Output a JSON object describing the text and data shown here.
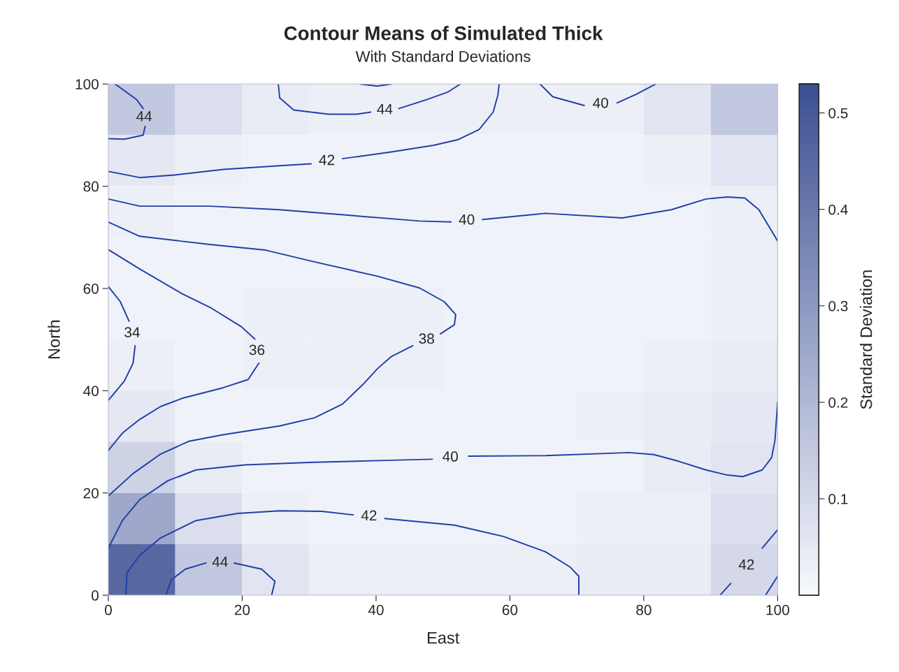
{
  "chart_data": [
    {
      "type": "heatmap",
      "clabel": "Standard Deviation",
      "clim": [
        0,
        0.53
      ],
      "cticks": [
        0.1,
        0.2,
        0.3,
        0.4,
        0.5
      ],
      "tick_labels": false,
      "categories": [
        null,
        null,
        null,
        null,
        null,
        null,
        null,
        null,
        null,
        null
      ],
      "y_categories": [
        null,
        null,
        null,
        null,
        null,
        null,
        null,
        null,
        null,
        null
      ],
      "cells": [
        [
          0.15,
          0.08,
          0.04,
          0.03,
          0.03,
          0.03,
          0.03,
          0.03,
          0.06,
          0.15
        ],
        [
          0.05,
          0.03,
          0.02,
          0.02,
          0.02,
          0.02,
          0.02,
          0.02,
          0.03,
          0.06
        ],
        [
          0.03,
          0.02,
          0.02,
          0.02,
          0.02,
          0.02,
          0.02,
          0.02,
          0.02,
          0.03
        ],
        [
          0.02,
          0.02,
          0.02,
          0.02,
          0.02,
          0.02,
          0.02,
          0.02,
          0.02,
          0.03
        ],
        [
          0.02,
          0.02,
          0.03,
          0.03,
          0.03,
          0.02,
          0.02,
          0.02,
          0.02,
          0.03
        ],
        [
          0.03,
          0.02,
          0.03,
          0.03,
          0.03,
          0.02,
          0.02,
          0.02,
          0.03,
          0.04
        ],
        [
          0.05,
          0.02,
          0.02,
          0.02,
          0.02,
          0.02,
          0.02,
          0.03,
          0.04,
          0.05
        ],
        [
          0.12,
          0.04,
          0.02,
          0.02,
          0.02,
          0.02,
          0.02,
          0.02,
          0.04,
          0.06
        ],
        [
          0.25,
          0.08,
          0.03,
          0.02,
          0.02,
          0.02,
          0.02,
          0.03,
          0.03,
          0.08
        ],
        [
          0.45,
          0.15,
          0.06,
          0.03,
          0.03,
          0.03,
          0.03,
          0.04,
          0.04,
          0.1
        ]
      ]
    },
    {
      "type": "line",
      "title": "Contour Means of Simulated Thick",
      "subtitle": "With Standard Deviations",
      "xlabel": "East",
      "ylabel": "North",
      "xlim": [
        0,
        100
      ],
      "xticks": [
        0,
        20,
        40,
        60,
        80,
        100
      ],
      "ylim": [
        0,
        100
      ],
      "yticks": [
        0,
        20,
        40,
        60,
        80,
        100
      ],
      "series": [
        {
          "name": "44",
          "color": "#1f3fa8",
          "x": [
            1.0,
            4.2,
            5.2,
            null,
            5.5,
            5.2,
            2.4,
            0
          ],
          "values": [
            100,
            97.0,
            95.2,
            null,
            91.7,
            90.0,
            89.2,
            89.3
          ]
        },
        {
          "name": "44",
          "color": "#1f3fa8",
          "x": [
            25.4,
            25.6,
            27.7,
            32.9,
            37.1,
            39.2,
            null,
            43.4,
            47.5,
            50.7,
            52.6
          ],
          "values": [
            100,
            97.3,
            94.9,
            94.1,
            94.1,
            94.5,
            null,
            95.2,
            96.9,
            98.4,
            100
          ]
        },
        {
          "color": "#1f3fa8",
          "x": [
            37.6,
            40.2,
            42.3
          ],
          "values": [
            100,
            99.6,
            100
          ]
        },
        {
          "name": "40",
          "color": "#1f3fa8",
          "x": [
            64.5,
            66.4,
            71.1,
            null,
            76.0,
            78.9,
            81.8
          ],
          "values": [
            100,
            97.5,
            95.8,
            null,
            96.3,
            98.0,
            100
          ]
        },
        {
          "name": "42",
          "color": "#1f3fa8",
          "x": [
            0,
            4.7,
            9.9,
            17.2,
            25.6,
            30.3,
            null,
            35.0,
            42.3,
            48.6,
            52.2,
            55.4,
            57.5,
            58.2,
            58.4
          ],
          "values": [
            82.9,
            81.7,
            82.2,
            83.3,
            84.0,
            84.4,
            null,
            85.4,
            86.7,
            88.0,
            89.1,
            91.1,
            94.5,
            97.8,
            100
          ]
        },
        {
          "name": "40",
          "color": "#1f3fa8",
          "x": [
            0,
            4.7,
            15.2,
            25.6,
            36.1,
            46.5,
            51.2,
            null,
            55.9,
            65.3,
            76.8,
            84.1,
            89.3,
            92.5,
            95.1,
            97.2,
            100
          ],
          "values": [
            77.5,
            76.1,
            76.1,
            75.4,
            74.3,
            73.2,
            73.0,
            null,
            73.5,
            74.7,
            73.8,
            75.4,
            77.5,
            77.9,
            77.7,
            75.4,
            69.3
          ]
        },
        {
          "name": "38",
          "color": "#1f3fa8",
          "x": [
            0,
            4.7,
            15.2,
            23.5,
            30.8,
            40.2,
            46.5,
            50.2,
            51.9,
            51.7,
            49.6,
            null,
            45.5,
            42.3,
            40.2,
            38.1,
            35.0,
            30.8,
            25.6,
            17.2,
            12.0,
            7.8,
            3.7,
            0
          ],
          "values": [
            73.0,
            70.2,
            68.6,
            67.5,
            65.2,
            62.4,
            60.1,
            57.4,
            54.9,
            52.9,
            51.1,
            null,
            48.8,
            46.7,
            44.3,
            41.3,
            37.4,
            34.7,
            33.1,
            31.4,
            30.1,
            27.6,
            23.8,
            19.4
          ]
        },
        {
          "name": "36",
          "color": "#1f3fa8",
          "x": [
            0,
            4.7,
            11.0,
            15.2,
            19.9,
            21.9,
            null,
            22.5,
            20.9,
            17.2,
            11.0,
            7.8,
            4.7,
            2.1,
            0
          ],
          "values": [
            67.6,
            63.8,
            59.0,
            56.3,
            52.5,
            50.1,
            null,
            45.4,
            42.2,
            40.6,
            38.5,
            36.9,
            34.4,
            31.7,
            28.3
          ]
        },
        {
          "name": "34",
          "color": "#1f3fa8",
          "x": [
            0,
            1.8,
            3.1,
            null,
            4.0,
            3.7,
            2.4,
            0
          ],
          "values": [
            60.4,
            57.4,
            53.6,
            null,
            48.8,
            45.4,
            41.9,
            38.1
          ]
        },
        {
          "name": "40",
          "color": "#1f3fa8",
          "x": [
            0,
            2.1,
            4.7,
            8.9,
            13.1,
            20.4,
            30.8,
            42.3,
            48.4,
            null,
            53.8,
            65.3,
            77.8,
            81.5,
            85.2,
            89.3,
            92.5,
            94.8,
            97.7,
            99.1,
            99.6,
            100
          ],
          "values": [
            9.2,
            14.6,
            18.7,
            22.4,
            24.5,
            25.5,
            26.0,
            26.4,
            26.6,
            null,
            27.2,
            27.3,
            27.9,
            27.5,
            26.2,
            24.5,
            23.5,
            23.2,
            24.5,
            26.9,
            30.3,
            37.8
          ]
        },
        {
          "name": "42",
          "color": "#1f3fa8",
          "x": [
            2.6,
            2.8,
            4.7,
            7.8,
            13.1,
            19.3,
            25.6,
            31.9,
            36.6,
            null,
            41.3,
            51.7,
            59.0,
            65.3,
            69.0,
            70.3,
            70.3
          ],
          "values": [
            0,
            4.4,
            7.8,
            11.2,
            14.6,
            16.0,
            16.5,
            16.4,
            15.7,
            null,
            15.0,
            13.7,
            11.5,
            8.5,
            5.5,
            3.7,
            0
          ]
        },
        {
          "name": "44",
          "color": "#1f3fa8",
          "x": [
            8.6,
            9.4,
            11.5,
            14.6,
            null,
            18.8,
            22.9,
            24.9,
            24.4
          ],
          "values": [
            0,
            3.0,
            5.1,
            6.3,
            null,
            6.3,
            5.1,
            2.7,
            0
          ]
        },
        {
          "name": "42",
          "color": "#1f3fa8",
          "x": [
            91.4,
            93.0,
            null,
            97.7,
            100
          ],
          "values": [
            0,
            2.3,
            null,
            9.2,
            12.8
          ]
        },
        {
          "color": "#1f3fa8",
          "x": [
            98.2,
            100
          ],
          "values": [
            0,
            3.7
          ]
        }
      ]
    }
  ]
}
